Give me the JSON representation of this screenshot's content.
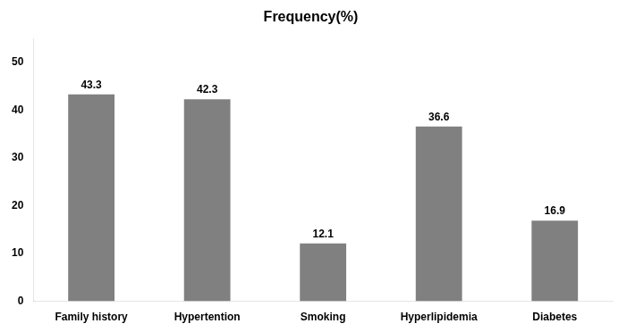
{
  "chart_data": {
    "type": "bar",
    "title": "Frequency(%)",
    "categories": [
      "Family history",
      "Hypertention",
      "Smoking",
      "Hyperlipidemia",
      "Diabetes"
    ],
    "values": [
      43.3,
      42.3,
      12.1,
      36.6,
      16.9
    ],
    "color": "#808080",
    "ylim": [
      0,
      55
    ],
    "yticks": [
      0,
      10,
      20,
      30,
      40,
      50
    ],
    "grid": false,
    "data_labels": true
  }
}
